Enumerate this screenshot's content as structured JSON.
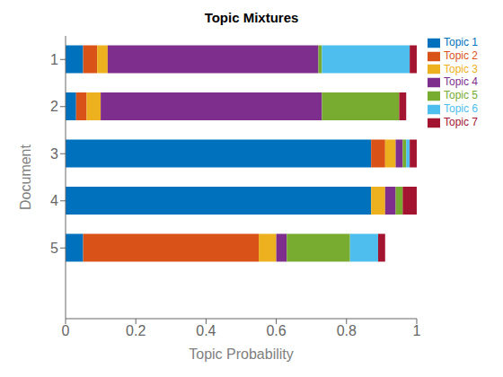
{
  "chart_data": {
    "type": "bar",
    "orientation": "horizontal",
    "stacked": true,
    "title": "Topic Mixtures",
    "xlabel": "Topic Probability",
    "ylabel": "Document",
    "categories": [
      1,
      2,
      3,
      4,
      5
    ],
    "series": [
      {
        "name": "Topic 1",
        "color": "#0072BD",
        "values": [
          0.05,
          0.03,
          0.87,
          0.87,
          0.05
        ]
      },
      {
        "name": "Topic 2",
        "color": "#D95319",
        "values": [
          0.04,
          0.03,
          0.04,
          0.0,
          0.5
        ]
      },
      {
        "name": "Topic 3",
        "color": "#EDB120",
        "values": [
          0.03,
          0.04,
          0.03,
          0.04,
          0.05
        ]
      },
      {
        "name": "Topic 4",
        "color": "#7E2F8E",
        "values": [
          0.6,
          0.63,
          0.02,
          0.03,
          0.03
        ]
      },
      {
        "name": "Topic 5",
        "color": "#77AC30",
        "values": [
          0.01,
          0.22,
          0.01,
          0.02,
          0.18
        ]
      },
      {
        "name": "Topic 6",
        "color": "#4DBEEE",
        "values": [
          0.25,
          0.0,
          0.01,
          0.0,
          0.08
        ]
      },
      {
        "name": "Topic 7",
        "color": "#A2142F",
        "values": [
          0.02,
          0.02,
          0.02,
          0.04,
          0.02
        ]
      }
    ],
    "xlim": [
      0,
      1
    ],
    "xticks": [
      0,
      0.2,
      0.4,
      0.6,
      0.8,
      1
    ],
    "ylim": [
      0.5,
      6.5
    ],
    "yticks": [
      1,
      2,
      3,
      4,
      5
    ],
    "legend": "upper right",
    "grid": false
  }
}
